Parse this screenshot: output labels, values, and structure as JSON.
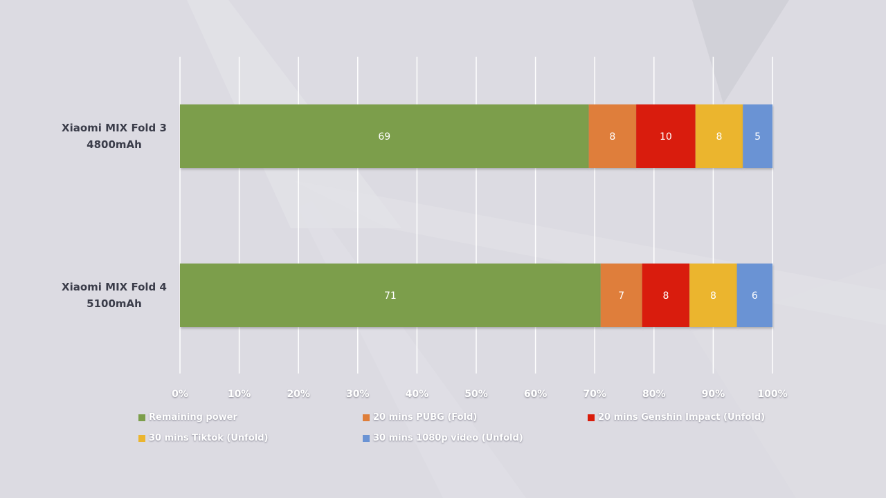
{
  "chart_data": {
    "type": "bar",
    "orientation": "horizontal",
    "stacked": true,
    "categories": [
      [
        "Xiaomi MIX Fold 3",
        "4800mAh"
      ],
      [
        "Xiaomi MIX Fold 4",
        "5100mAh"
      ]
    ],
    "series": [
      {
        "name": "Remaining power",
        "color": "#7c9e4b",
        "values": [
          69,
          71
        ]
      },
      {
        "name": "20 mins PUBG (Fold)",
        "color": "#df7e3a",
        "values": [
          8,
          7
        ]
      },
      {
        "name": "20 mins Genshin Impact (Unfold)",
        "color": "#d91c0b",
        "values": [
          10,
          8
        ]
      },
      {
        "name": "30 mins Tiktok  (Unfold)",
        "color": "#ebb52f",
        "values": [
          8,
          8
        ]
      },
      {
        "name": "30 mins 1080p video  (Unfold)",
        "color": "#6a93d4",
        "values": [
          5,
          6
        ]
      }
    ],
    "x_ticks": [
      "0%",
      "10%",
      "20%",
      "30%",
      "40%",
      "50%",
      "60%",
      "70%",
      "80%",
      "90%",
      "100%"
    ],
    "xlim": [
      0,
      100
    ],
    "grid": true,
    "legend": "bottom"
  }
}
